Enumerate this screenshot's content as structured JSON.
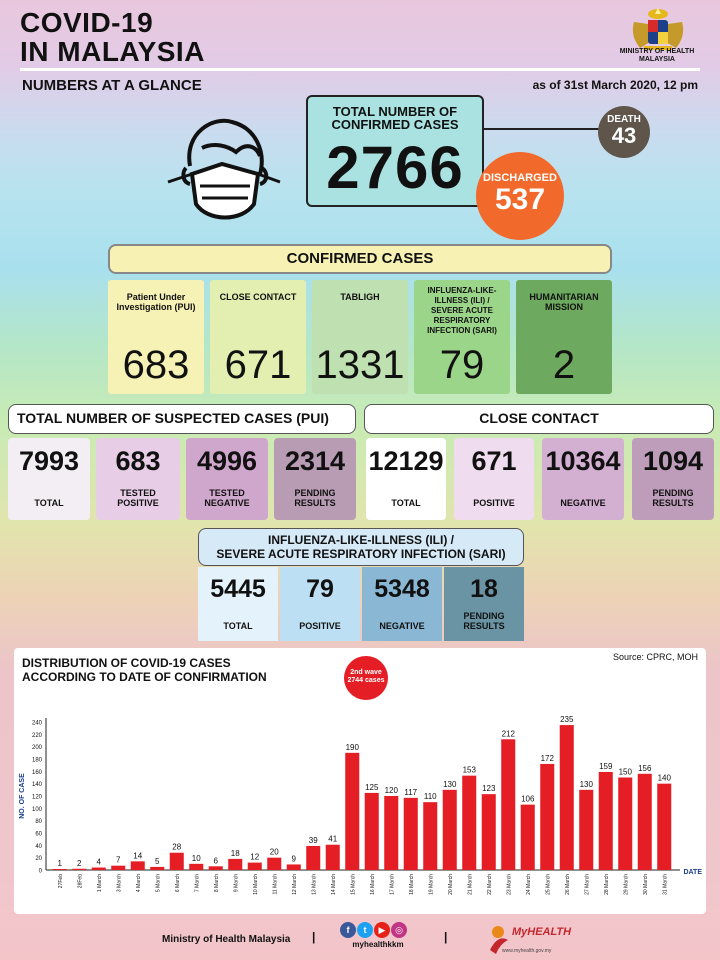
{
  "header": {
    "title_line1": "COVID-19",
    "title_line2": "IN MALAYSIA",
    "subtitle": "NUMBERS AT A GLANCE",
    "as_of": "as of 31st March 2020, 12 pm",
    "ministry_line1": "MINISTRY OF HEALTH",
    "ministry_line2": "MALAYSIA"
  },
  "summary": {
    "total_label_line1": "TOTAL NUMBER OF",
    "total_label_line2": "CONFIRMED CASES",
    "total_value": "2766",
    "death_label": "DEATH",
    "death_value": "43",
    "discharged_label": "DISCHARGED",
    "discharged_value": "537"
  },
  "confirmed": {
    "banner": "CONFIRMED CASES",
    "cards": [
      {
        "label": "Patient Under Investigation (PUI)",
        "value": "683",
        "color": "#f6f1b4"
      },
      {
        "label": "CLOSE CONTACT",
        "value": "671",
        "color": "#e3efb1"
      },
      {
        "label": "TABLIGH",
        "value": "1331",
        "color": "#bfe0b0"
      },
      {
        "label": "INFLUENZA-LIKE-ILLNESS (ILI) / SEVERE ACUTE RESPIRATORY INFECTION (SARI)",
        "value": "79",
        "color": "#9bd58a"
      },
      {
        "label": "HUMANITARIAN MISSION",
        "value": "2",
        "color": "#6da95e"
      }
    ]
  },
  "suspected": {
    "header": "TOTAL NUMBER OF SUSPECTED CASES (PUI)",
    "stats": [
      {
        "value": "7993",
        "label": "TOTAL",
        "color": "#f2eef3"
      },
      {
        "value": "683",
        "label": "TESTED POSITIVE",
        "color": "#e7cde6"
      },
      {
        "value": "4996",
        "label": "TESTED NEGATIVE",
        "color": "#cfa6cc"
      },
      {
        "value": "2314",
        "label": "PENDING RESULTS",
        "color": "#b79cb3"
      }
    ]
  },
  "close_contact": {
    "header": "CLOSE CONTACT",
    "stats": [
      {
        "value": "12129",
        "label": "TOTAL",
        "color": "#ffffff"
      },
      {
        "value": "671",
        "label": "POSITIVE",
        "color": "#efdcef"
      },
      {
        "value": "10364",
        "label": "NEGATIVE",
        "color": "#d3b0d2"
      },
      {
        "value": "1094",
        "label": "PENDING RESULTS",
        "color": "#be9dba"
      }
    ]
  },
  "ili": {
    "header_line1": "INFLUENZA-LIKE-ILLNESS (ILI) /",
    "header_line2": "SEVERE ACUTE RESPIRATORY INFECTION (SARI)",
    "stats": [
      {
        "value": "5445",
        "label": "TOTAL",
        "color": "#e4f2fb"
      },
      {
        "value": "79",
        "label": "POSITIVE",
        "color": "#bcdff4"
      },
      {
        "value": "5348",
        "label": "NEGATIVE",
        "color": "#89b7d4"
      },
      {
        "value": "18",
        "label": "PENDING RESULTS",
        "color": "#6a93a4"
      }
    ]
  },
  "chart_section": {
    "title_line1": "DISTRIBUTION OF COVID-19 CASES",
    "title_line2": "ACCORDING TO DATE OF CONFIRMATION",
    "source": "Source: CPRC, MOH",
    "wave_line1": "2nd wave",
    "wave_line2": "2744 cases"
  },
  "chart_data": {
    "type": "bar",
    "ylabel": "NO. OF CASE",
    "xlabel": "DATE",
    "ylim": [
      0,
      240
    ],
    "yticks": [
      0,
      20,
      40,
      60,
      80,
      100,
      120,
      140,
      160,
      180,
      200,
      220,
      240
    ],
    "bar_color": "#e51e25",
    "categories": [
      "27Feb",
      "28Feb",
      "1 March",
      "3 March",
      "4 March",
      "5 March",
      "6 March",
      "7 March",
      "8 March",
      "9 March",
      "10 March",
      "11 March",
      "12 March",
      "13 March",
      "14 March",
      "15 March",
      "16 March",
      "17 March",
      "18 March",
      "19 March",
      "20 March",
      "21 March",
      "22 March",
      "23 March",
      "24 March",
      "25 March",
      "26 March",
      "27 March",
      "28 March",
      "29 March",
      "30 March",
      "31 March"
    ],
    "values": [
      1,
      2,
      4,
      7,
      14,
      5,
      28,
      10,
      6,
      18,
      12,
      20,
      9,
      39,
      41,
      190,
      125,
      120,
      117,
      110,
      130,
      153,
      123,
      212,
      106,
      172,
      235,
      130,
      159,
      150,
      156,
      140
    ]
  },
  "footer": {
    "ministry": "Ministry of Health Malaysia",
    "separator": "|",
    "social_handle": "myhealthkkm",
    "brand": "MyHEALTH",
    "brand_url": "www.myhealth.gov.my"
  }
}
